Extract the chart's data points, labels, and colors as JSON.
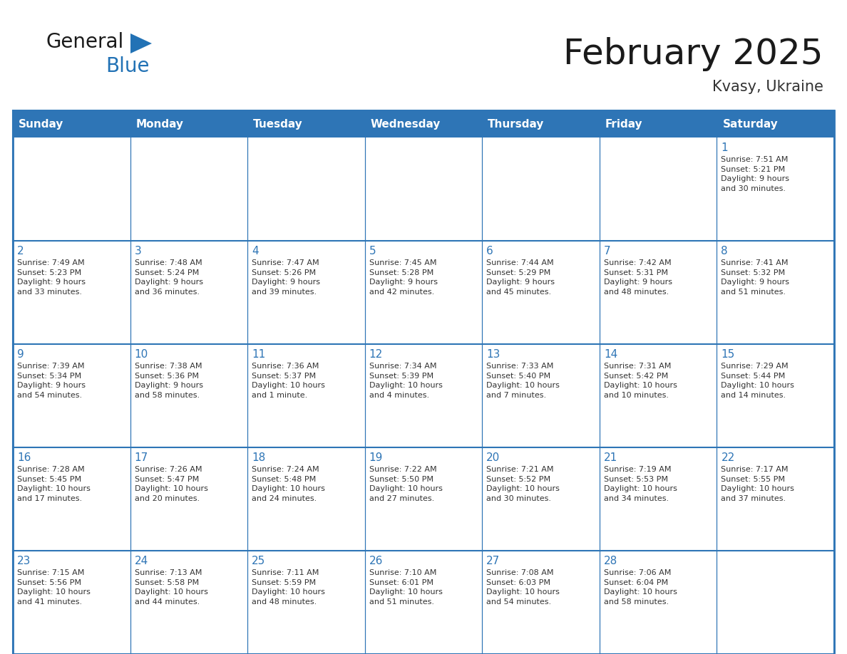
{
  "title": "February 2025",
  "subtitle": "Kvasy, Ukraine",
  "header_bg": "#2E75B6",
  "header_text_color": "#FFFFFF",
  "cell_bg_white": "#FFFFFF",
  "cell_bg_light": "#F0F4F8",
  "border_color": "#2E75B6",
  "row_divider_color": "#2E75B6",
  "title_color": "#1a1a1a",
  "subtitle_color": "#333333",
  "day_number_color": "#2E75B6",
  "cell_text_color": "#333333",
  "days_of_week": [
    "Sunday",
    "Monday",
    "Tuesday",
    "Wednesday",
    "Thursday",
    "Friday",
    "Saturday"
  ],
  "weeks": [
    [
      {
        "day": null,
        "info": null
      },
      {
        "day": null,
        "info": null
      },
      {
        "day": null,
        "info": null
      },
      {
        "day": null,
        "info": null
      },
      {
        "day": null,
        "info": null
      },
      {
        "day": null,
        "info": null
      },
      {
        "day": 1,
        "info": "Sunrise: 7:51 AM\nSunset: 5:21 PM\nDaylight: 9 hours\nand 30 minutes."
      }
    ],
    [
      {
        "day": 2,
        "info": "Sunrise: 7:49 AM\nSunset: 5:23 PM\nDaylight: 9 hours\nand 33 minutes."
      },
      {
        "day": 3,
        "info": "Sunrise: 7:48 AM\nSunset: 5:24 PM\nDaylight: 9 hours\nand 36 minutes."
      },
      {
        "day": 4,
        "info": "Sunrise: 7:47 AM\nSunset: 5:26 PM\nDaylight: 9 hours\nand 39 minutes."
      },
      {
        "day": 5,
        "info": "Sunrise: 7:45 AM\nSunset: 5:28 PM\nDaylight: 9 hours\nand 42 minutes."
      },
      {
        "day": 6,
        "info": "Sunrise: 7:44 AM\nSunset: 5:29 PM\nDaylight: 9 hours\nand 45 minutes."
      },
      {
        "day": 7,
        "info": "Sunrise: 7:42 AM\nSunset: 5:31 PM\nDaylight: 9 hours\nand 48 minutes."
      },
      {
        "day": 8,
        "info": "Sunrise: 7:41 AM\nSunset: 5:32 PM\nDaylight: 9 hours\nand 51 minutes."
      }
    ],
    [
      {
        "day": 9,
        "info": "Sunrise: 7:39 AM\nSunset: 5:34 PM\nDaylight: 9 hours\nand 54 minutes."
      },
      {
        "day": 10,
        "info": "Sunrise: 7:38 AM\nSunset: 5:36 PM\nDaylight: 9 hours\nand 58 minutes."
      },
      {
        "day": 11,
        "info": "Sunrise: 7:36 AM\nSunset: 5:37 PM\nDaylight: 10 hours\nand 1 minute."
      },
      {
        "day": 12,
        "info": "Sunrise: 7:34 AM\nSunset: 5:39 PM\nDaylight: 10 hours\nand 4 minutes."
      },
      {
        "day": 13,
        "info": "Sunrise: 7:33 AM\nSunset: 5:40 PM\nDaylight: 10 hours\nand 7 minutes."
      },
      {
        "day": 14,
        "info": "Sunrise: 7:31 AM\nSunset: 5:42 PM\nDaylight: 10 hours\nand 10 minutes."
      },
      {
        "day": 15,
        "info": "Sunrise: 7:29 AM\nSunset: 5:44 PM\nDaylight: 10 hours\nand 14 minutes."
      }
    ],
    [
      {
        "day": 16,
        "info": "Sunrise: 7:28 AM\nSunset: 5:45 PM\nDaylight: 10 hours\nand 17 minutes."
      },
      {
        "day": 17,
        "info": "Sunrise: 7:26 AM\nSunset: 5:47 PM\nDaylight: 10 hours\nand 20 minutes."
      },
      {
        "day": 18,
        "info": "Sunrise: 7:24 AM\nSunset: 5:48 PM\nDaylight: 10 hours\nand 24 minutes."
      },
      {
        "day": 19,
        "info": "Sunrise: 7:22 AM\nSunset: 5:50 PM\nDaylight: 10 hours\nand 27 minutes."
      },
      {
        "day": 20,
        "info": "Sunrise: 7:21 AM\nSunset: 5:52 PM\nDaylight: 10 hours\nand 30 minutes."
      },
      {
        "day": 21,
        "info": "Sunrise: 7:19 AM\nSunset: 5:53 PM\nDaylight: 10 hours\nand 34 minutes."
      },
      {
        "day": 22,
        "info": "Sunrise: 7:17 AM\nSunset: 5:55 PM\nDaylight: 10 hours\nand 37 minutes."
      }
    ],
    [
      {
        "day": 23,
        "info": "Sunrise: 7:15 AM\nSunset: 5:56 PM\nDaylight: 10 hours\nand 41 minutes."
      },
      {
        "day": 24,
        "info": "Sunrise: 7:13 AM\nSunset: 5:58 PM\nDaylight: 10 hours\nand 44 minutes."
      },
      {
        "day": 25,
        "info": "Sunrise: 7:11 AM\nSunset: 5:59 PM\nDaylight: 10 hours\nand 48 minutes."
      },
      {
        "day": 26,
        "info": "Sunrise: 7:10 AM\nSunset: 6:01 PM\nDaylight: 10 hours\nand 51 minutes."
      },
      {
        "day": 27,
        "info": "Sunrise: 7:08 AM\nSunset: 6:03 PM\nDaylight: 10 hours\nand 54 minutes."
      },
      {
        "day": 28,
        "info": "Sunrise: 7:06 AM\nSunset: 6:04 PM\nDaylight: 10 hours\nand 58 minutes."
      },
      {
        "day": null,
        "info": null
      }
    ]
  ],
  "logo_general_color": "#1a1a1a",
  "logo_blue_color": "#2272B5",
  "logo_triangle_color": "#2272B5",
  "title_fontsize": 36,
  "subtitle_fontsize": 15,
  "header_fontsize": 11,
  "day_num_fontsize": 11,
  "cell_text_fontsize": 8
}
